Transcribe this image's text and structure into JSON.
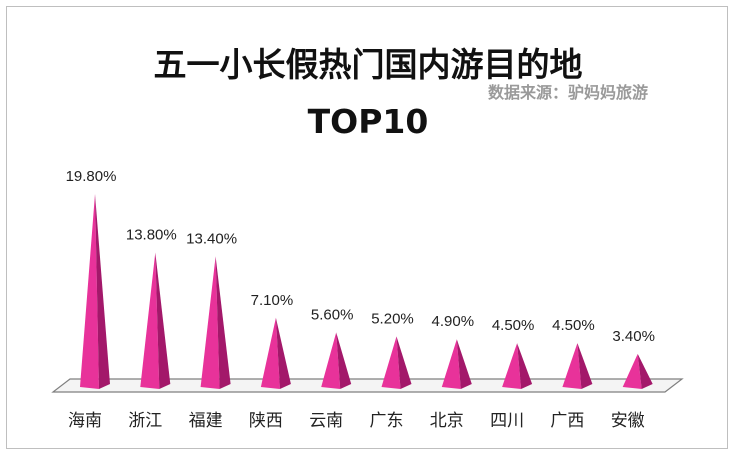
{
  "chart_data": {
    "type": "bar",
    "shape": "cone",
    "title": "五一小长假热门国内游目的地",
    "title_line2": "TOP10",
    "source": "数据来源：驴妈妈旅游",
    "categories": [
      "海南",
      "浙江",
      "福建",
      "陕西",
      "云南",
      "广东",
      "北京",
      "四川",
      "广西",
      "安徽"
    ],
    "values": [
      19.8,
      13.8,
      13.4,
      7.1,
      5.6,
      5.2,
      4.9,
      4.5,
      4.5,
      3.4
    ],
    "labels": [
      "19.80%",
      "13.80%",
      "13.40%",
      "7.10%",
      "5.60%",
      "5.20%",
      "4.90%",
      "4.50%",
      "4.50%",
      "3.40%"
    ],
    "unit": "%",
    "ylim": [
      0,
      20
    ],
    "grid": false,
    "legend": "none",
    "bar_color": "#e8329a",
    "bar_shade_color": "#a3186a",
    "floor_color": "#f4f4f4"
  }
}
